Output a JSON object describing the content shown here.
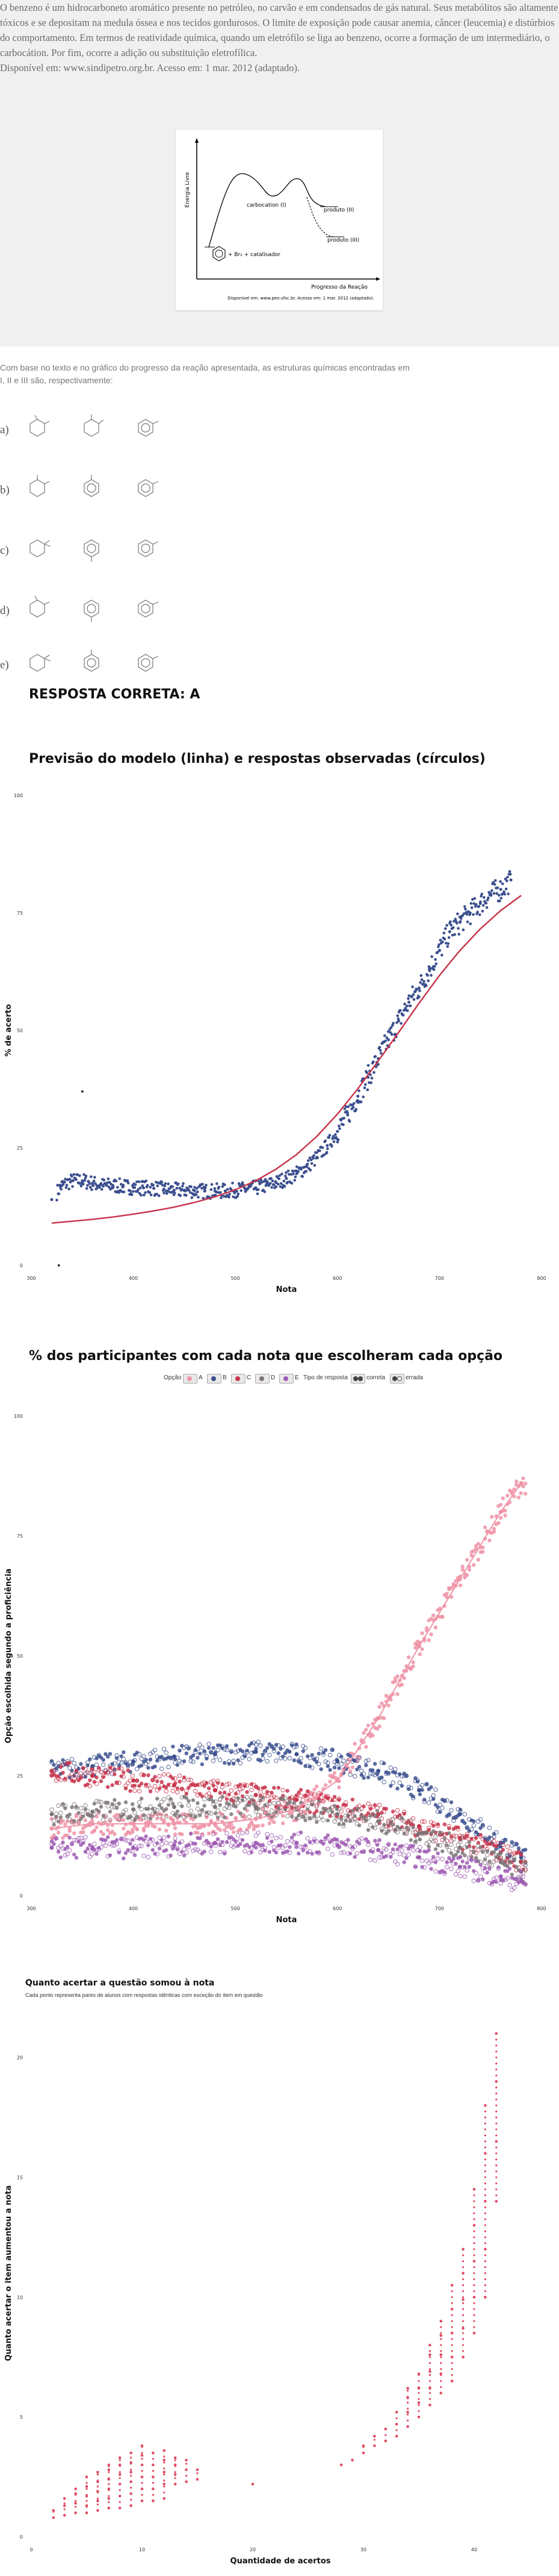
{
  "question": {
    "paragraph1": "O benzeno é um hidrocarboneto aromático presente no petróleo, no carvão e em condensados de gás natural. Seus metabólitos são altamente tóxicos e se depositam na medula óssea e nos tecidos gordurosos. O limite de exposição pode causar anemia, câncer (leucemia) e distúrbios do comportamento. Em termos de reatividade química, quando um eletrófilo se liga ao benzeno, ocorre a formação de um intermediário, o carbocátion. Por fim, ocorre a adição ou substituição eletrofílica.",
    "source": "Disponível em: www.sindipetro.org.br. Acesso em: 1 mar. 2012 (adaptado).",
    "figure": {
      "ylabel": "Energia Livre",
      "xlabel": "Progresso da Reação",
      "carbocation": "carbocation (I)",
      "product2": "produto (II)",
      "product3": "produto (III)",
      "reagent": "+ Br₂ + catalisador",
      "credit": "Disponível em: www.peo.ufsc.br. Acesso em: 1 mar. 2012 (adaptado)."
    },
    "stem_line1": "Com base no texto e no gráfico do progresso da reação apresentada, as estruturas químicas encontradas em",
    "stem_line2": "I, II e III são, respectivamente:",
    "alternatives": [
      "a)",
      "b)",
      "c)",
      "d)",
      "e)"
    ],
    "answer": "RESPOSTA CORRETA: A"
  },
  "colors": {
    "navy": "#3b4f8e",
    "red": "#c8334a",
    "pink": "#ef93a6",
    "gray": "#7d7478",
    "rose": "#c95669",
    "purple": "#9d5bb3",
    "dots": "#e04c64"
  },
  "chart_data": [
    {
      "type": "scatter",
      "title": "Previsão do modelo (linha) e respostas observadas (círculos)",
      "xlabel": "Nota",
      "ylabel": "% de acerto",
      "xlim": [
        300,
        800
      ],
      "ylim": [
        0,
        100
      ],
      "xticks": [
        "300",
        "400",
        "500",
        "600",
        "700",
        "800"
      ],
      "yticks": [
        "0",
        "25",
        "50",
        "75",
        "100"
      ],
      "observed": {
        "x": [
          320,
          330,
          340,
          350,
          360,
          370,
          380,
          390,
          400,
          410,
          420,
          430,
          440,
          450,
          460,
          470,
          480,
          490,
          500,
          510,
          520,
          530,
          540,
          550,
          560,
          570,
          580,
          590,
          600,
          610,
          620,
          630,
          640,
          650,
          660,
          670,
          680,
          690,
          700,
          710,
          720,
          730,
          740,
          750,
          760,
          770
        ],
        "y": [
          14,
          17,
          18,
          18,
          17.5,
          17,
          17,
          16.8,
          16.6,
          16.5,
          16.4,
          16.2,
          16,
          16,
          15.9,
          15.8,
          15.8,
          15.8,
          16,
          16.2,
          16.5,
          17,
          17.6,
          18.5,
          19.5,
          21,
          23,
          25.5,
          28.5,
          32,
          36,
          40,
          44,
          48,
          52,
          56,
          59,
          63,
          67,
          71,
          73,
          75,
          77,
          79,
          80,
          82
        ]
      },
      "model": {
        "x": [
          320,
          340,
          360,
          380,
          400,
          420,
          440,
          460,
          480,
          500,
          520,
          540,
          560,
          580,
          600,
          620,
          640,
          660,
          680,
          700,
          720,
          740,
          760,
          780
        ],
        "y": [
          9,
          9.4,
          9.8,
          10.3,
          10.9,
          11.6,
          12.4,
          13.4,
          14.6,
          16.1,
          18,
          20.5,
          23.6,
          27.5,
          32.2,
          37.6,
          43.5,
          49.6,
          55.8,
          61.7,
          67,
          71.6,
          75.5,
          78.7
        ]
      },
      "outliers": {
        "x": [
          327,
          350
        ],
        "y": [
          0,
          37
        ]
      }
    },
    {
      "type": "scatter",
      "title": "% dos participantes com cada nota que escolheram cada opção",
      "xlabel": "Nota",
      "ylabel": "Opção escolhida segundo a proficiência",
      "xlim": [
        300,
        800
      ],
      "ylim": [
        0,
        100
      ],
      "xticks": [
        "300",
        "400",
        "500",
        "600",
        "700",
        "800"
      ],
      "yticks": [
        "0",
        "25",
        "50",
        "75",
        "100"
      ],
      "legend": {
        "option_label": "Opção",
        "options": [
          "A",
          "B",
          "C",
          "D",
          "E"
        ],
        "type_label": "Tipo de resposta",
        "types": [
          "correta",
          "errada"
        ]
      },
      "series": [
        {
          "name": "A",
          "color": "#ef93a6",
          "x": [
            320,
            360,
            400,
            440,
            480,
            520,
            560,
            600,
            640,
            680,
            720,
            760,
            780
          ],
          "y": [
            14,
            15,
            15,
            15,
            15,
            16,
            18,
            24,
            37,
            52,
            66,
            80,
            86
          ]
        },
        {
          "name": "B",
          "color": "#3b4f8e",
          "x": [
            320,
            360,
            400,
            440,
            480,
            520,
            560,
            600,
            640,
            680,
            720,
            760,
            780
          ],
          "y": [
            26,
            27,
            28,
            29,
            29.5,
            30,
            29.5,
            28,
            26,
            22,
            17,
            11,
            8
          ]
        },
        {
          "name": "C",
          "color": "#c8334a",
          "x": [
            320,
            360,
            400,
            440,
            480,
            520,
            560,
            600,
            640,
            680,
            720,
            760,
            780
          ],
          "y": [
            26,
            25,
            24,
            23,
            22,
            21,
            20,
            18.5,
            17,
            14.5,
            12,
            9,
            7
          ]
        },
        {
          "name": "D",
          "color": "#7d7478",
          "x": [
            320,
            360,
            400,
            440,
            480,
            520,
            560,
            600,
            640,
            680,
            720,
            760,
            780
          ],
          "y": [
            17,
            17.5,
            18,
            18.5,
            18.5,
            18.5,
            18,
            17,
            15.5,
            13,
            10,
            7,
            5
          ]
        },
        {
          "name": "E",
          "color": "#9d5bb3",
          "x": [
            320,
            360,
            400,
            440,
            480,
            520,
            560,
            600,
            640,
            680,
            720,
            760,
            780
          ],
          "y": [
            10,
            10,
            10,
            10.5,
            11,
            11,
            11,
            10.5,
            9.5,
            8,
            6,
            4,
            3
          ]
        }
      ]
    },
    {
      "type": "scatter",
      "title": "Quanto acertar a questão somou à nota",
      "subtitle": "Cada ponto representa pares de alunos com respostas idênticas com exceção do item em questão",
      "xlabel": "Quantidade de acertos",
      "ylabel": "Quanto acertar o item aumentou a nota",
      "xlim": [
        0,
        45
      ],
      "ylim": [
        0,
        22
      ],
      "xticks": [
        "0",
        "10",
        "20",
        "30",
        "40"
      ],
      "yticks": [
        "0",
        "5",
        "10",
        "15",
        "20"
      ],
      "columns": [
        {
          "x": 2,
          "y": [
            0.8,
            1.1
          ]
        },
        {
          "x": 3,
          "y": [
            0.9,
            1.3,
            1.6
          ]
        },
        {
          "x": 4,
          "y": [
            1,
            1.4,
            1.8,
            2
          ]
        },
        {
          "x": 5,
          "y": [
            1,
            1.3,
            1.7,
            2.1,
            2.5
          ]
        },
        {
          "x": 6,
          "y": [
            1.1,
            1.5,
            1.9,
            2.3,
            2.7
          ]
        },
        {
          "x": 7,
          "y": [
            1.2,
            1.6,
            2,
            2.4,
            2.8,
            3
          ]
        },
        {
          "x": 8,
          "y": [
            1.2,
            1.7,
            2.2,
            2.6,
            3,
            3.3
          ]
        },
        {
          "x": 9,
          "y": [
            1.3,
            1.8,
            2.3,
            2.7,
            3.1,
            3.5
          ]
        },
        {
          "x": 10,
          "y": [
            1.5,
            2,
            2.5,
            3,
            3.4,
            3.8
          ]
        },
        {
          "x": 11,
          "y": [
            1.5,
            2,
            2.5,
            3,
            3.5
          ]
        },
        {
          "x": 12,
          "y": [
            1.6,
            2.2,
            2.7,
            3.2,
            3.6
          ]
        },
        {
          "x": 13,
          "y": [
            2.2,
            2.6,
            3,
            3.3
          ]
        },
        {
          "x": 14,
          "y": [
            2.3,
            2.8,
            3.2
          ]
        },
        {
          "x": 15,
          "y": [
            2.4,
            2.8
          ]
        },
        {
          "x": 20,
          "y": [
            2.2
          ]
        },
        {
          "x": 28,
          "y": [
            3
          ]
        },
        {
          "x": 29,
          "y": [
            3.2
          ]
        },
        {
          "x": 30,
          "y": [
            3.5,
            3.8
          ]
        },
        {
          "x": 31,
          "y": [
            3.8,
            4.2
          ]
        },
        {
          "x": 32,
          "y": [
            4,
            4.5
          ]
        },
        {
          "x": 33,
          "y": [
            4.2,
            4.7,
            5.2
          ]
        },
        {
          "x": 34,
          "y": [
            4.6,
            5.2,
            5.8,
            6.2
          ]
        },
        {
          "x": 35,
          "y": [
            5,
            5.6,
            6.2,
            6.8
          ]
        },
        {
          "x": 36,
          "y": [
            5.5,
            6.2,
            6.9,
            7.6,
            8
          ]
        },
        {
          "x": 37,
          "y": [
            6,
            6.8,
            7.6,
            8.4,
            9
          ]
        },
        {
          "x": 38,
          "y": [
            6.5,
            7.5,
            8.5,
            9.5,
            10.5
          ]
        },
        {
          "x": 39,
          "y": [
            7.5,
            8.7,
            9.9,
            11,
            12
          ]
        },
        {
          "x": 40,
          "y": [
            8.5,
            10,
            11.5,
            13,
            14.5
          ]
        },
        {
          "x": 41,
          "y": [
            10,
            12,
            14,
            16,
            18
          ]
        },
        {
          "x": 42,
          "y": [
            14,
            16.5,
            19,
            21
          ]
        }
      ]
    }
  ]
}
